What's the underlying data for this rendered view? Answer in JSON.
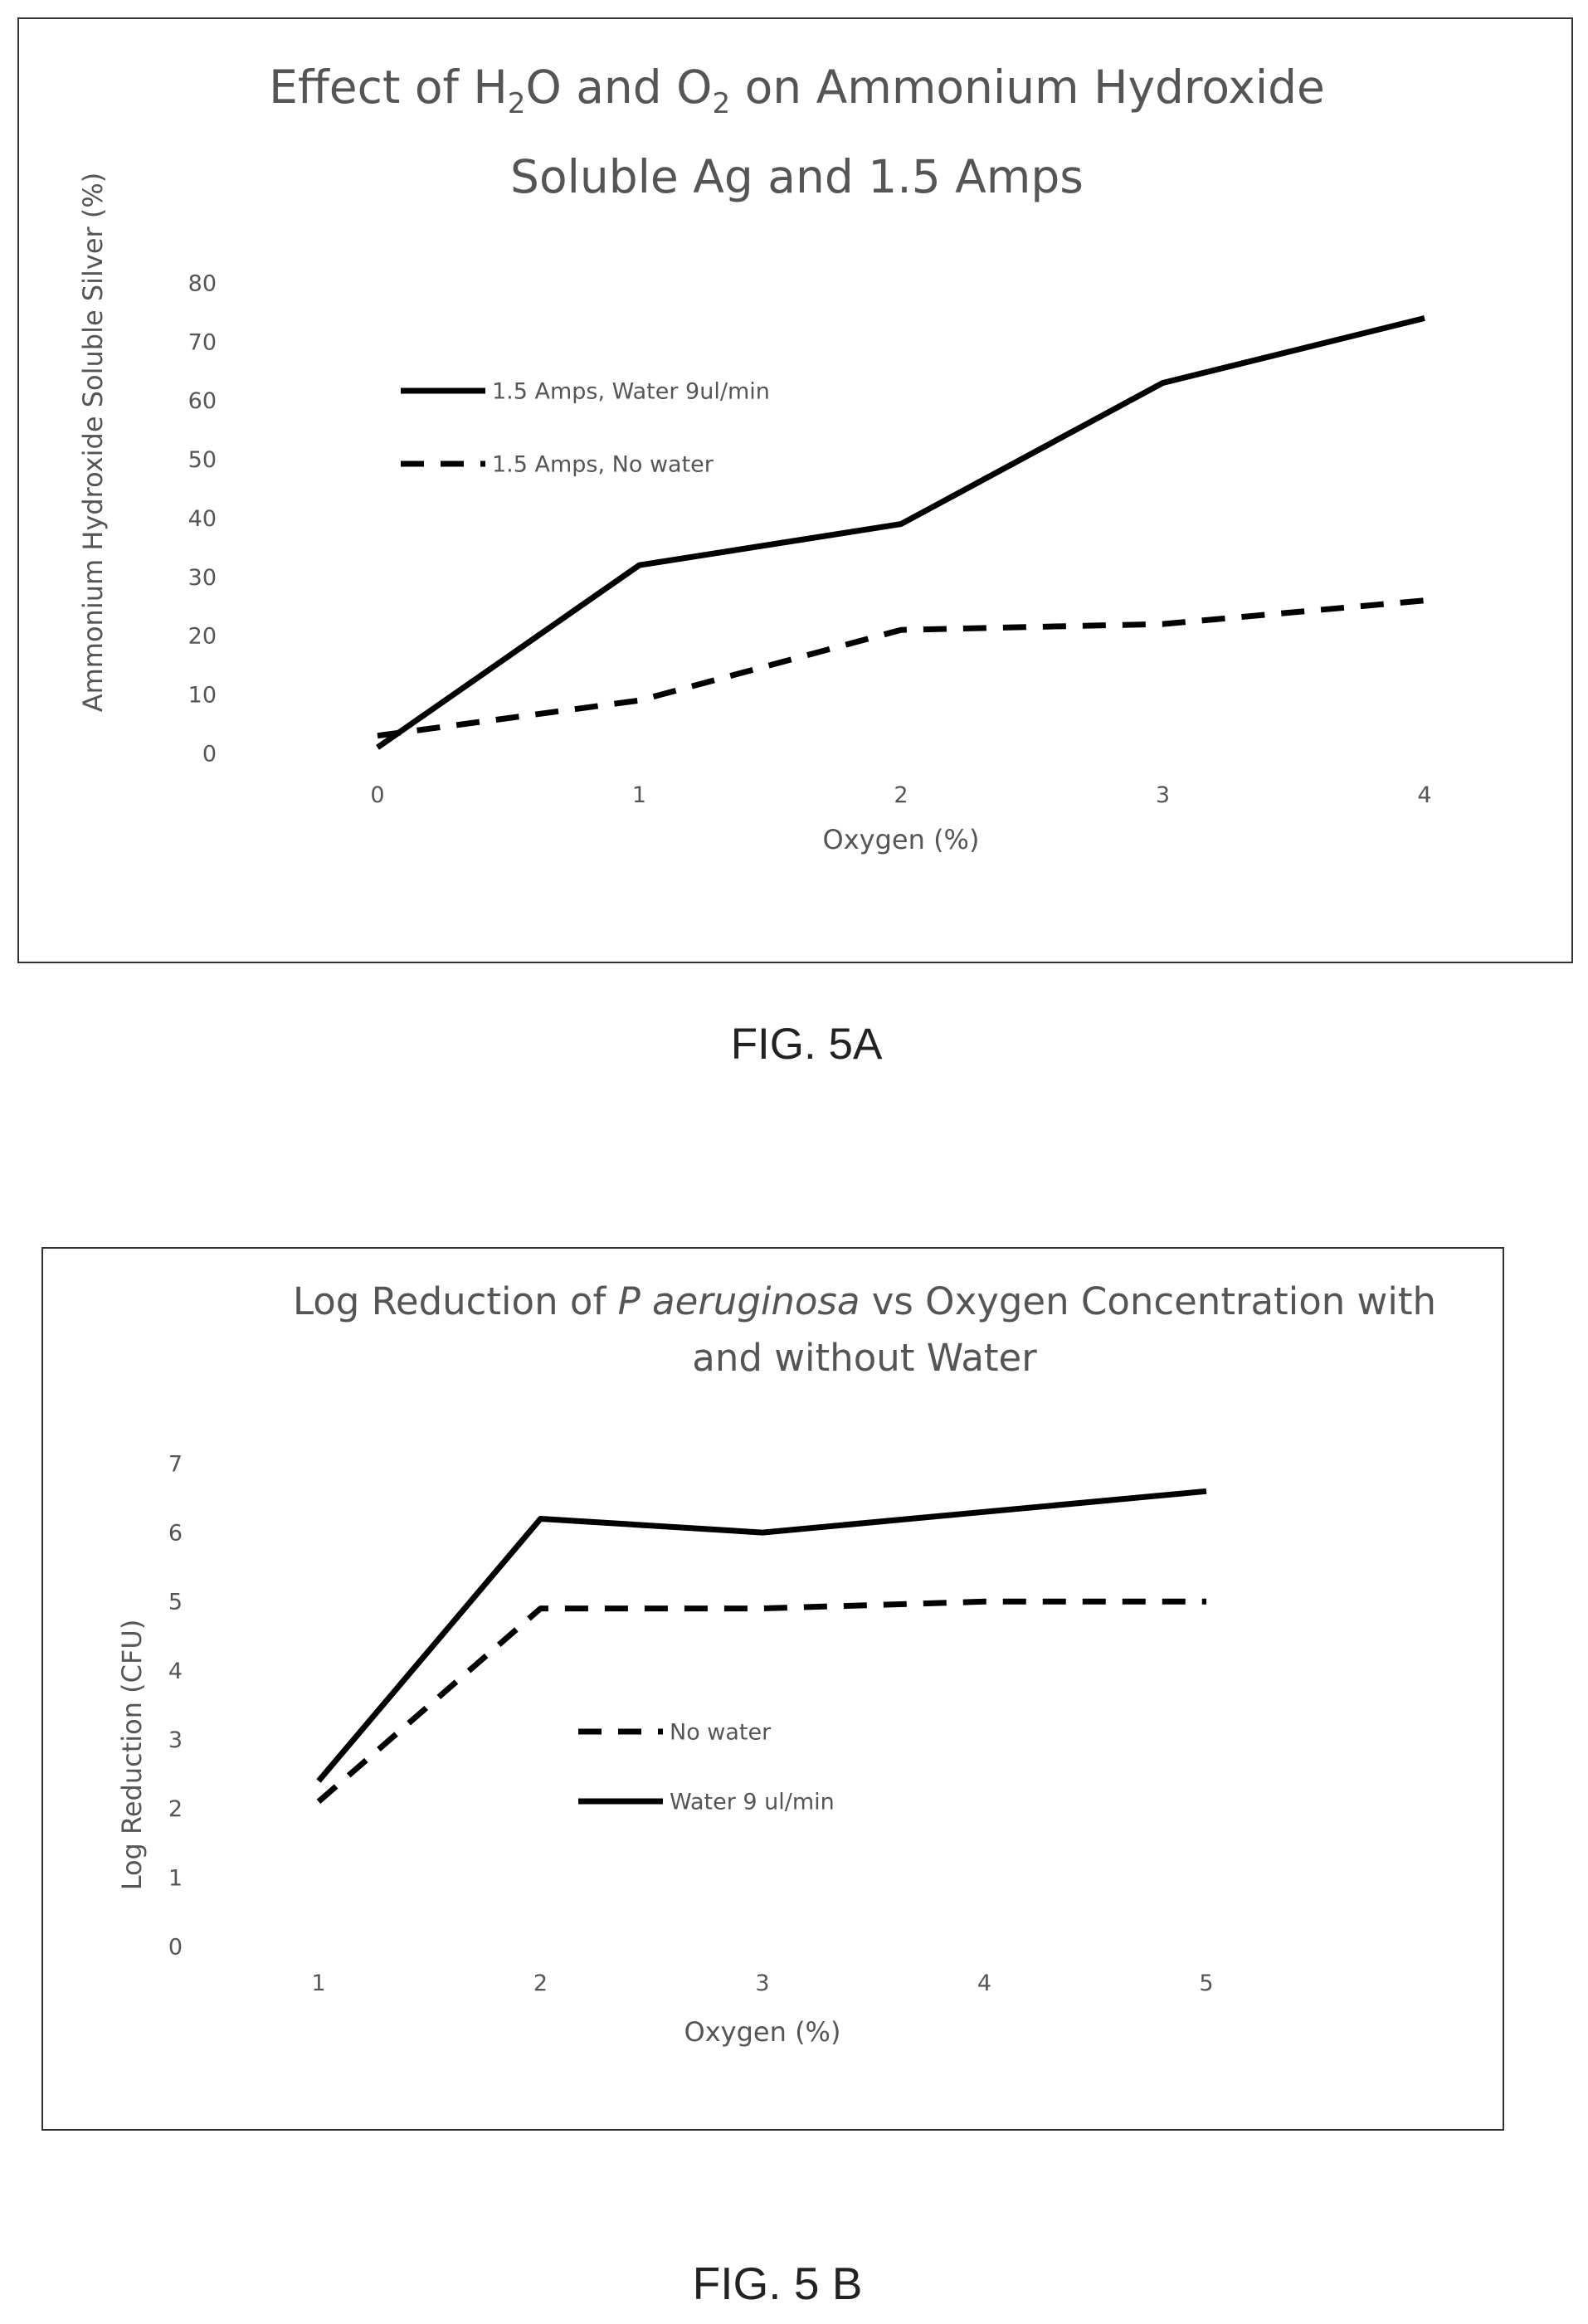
{
  "figure_a": {
    "title_parts": {
      "p1": "Effect of H",
      "s1": "2",
      "p2": "O and O",
      "s2": "2",
      "p3": " on Ammonium Hydroxide",
      "line2": "Soluble Ag and 1.5 Amps"
    },
    "label": "FIG. 5A"
  },
  "figure_b": {
    "title_parts": {
      "p1": "Log Reduction of ",
      "italic": "P aeruginosa",
      "p2": " vs Oxygen Concentration with",
      "line2": "and without Water"
    },
    "label": "FIG. 5 B"
  },
  "chart_data": [
    {
      "type": "line",
      "title": "Effect of H2O and O2 on Ammonium Hydroxide Soluble Ag and 1.5 Amps",
      "xlabel": "Oxygen (%)",
      "ylabel": "Ammonium Hydroxide Soluble Silver (%)",
      "x": [
        0,
        1,
        2,
        3,
        4
      ],
      "xlim": [
        0,
        4
      ],
      "ylim": [
        0,
        80
      ],
      "yticks": [
        0,
        10,
        20,
        30,
        40,
        50,
        60,
        70,
        80
      ],
      "xticks": [
        0,
        1,
        2,
        3,
        4
      ],
      "grid": false,
      "legend_position": "upper-left",
      "series": [
        {
          "name": "1.5 Amps, Water  9ul/min",
          "style": "solid",
          "color": "#000000",
          "values": [
            1,
            32,
            39,
            63,
            74
          ]
        },
        {
          "name": "1.5 Amps, No water",
          "style": "dashed",
          "color": "#000000",
          "values": [
            3,
            9,
            21,
            22,
            26
          ]
        }
      ]
    },
    {
      "type": "line",
      "title": "Log Reduction of P aeruginosa vs Oxygen Concentration with and without Water",
      "xlabel": "Oxygen (%)",
      "ylabel": "Log Reduction (CFU)",
      "x": [
        1,
        2,
        3,
        4,
        5
      ],
      "xlim": [
        1,
        5
      ],
      "ylim": [
        0,
        7
      ],
      "yticks": [
        0,
        1,
        2,
        3,
        4,
        5,
        6,
        7
      ],
      "xticks": [
        1,
        2,
        3,
        4,
        5
      ],
      "grid": false,
      "legend_position": "center",
      "series": [
        {
          "name": "No water",
          "style": "dashed",
          "color": "#000000",
          "values": [
            2.1,
            4.9,
            4.9,
            5.0,
            5.0
          ]
        },
        {
          "name": "Water 9 ul/min",
          "style": "solid",
          "color": "#000000",
          "values": [
            2.4,
            6.2,
            6.0,
            6.3,
            6.6
          ]
        }
      ]
    }
  ]
}
